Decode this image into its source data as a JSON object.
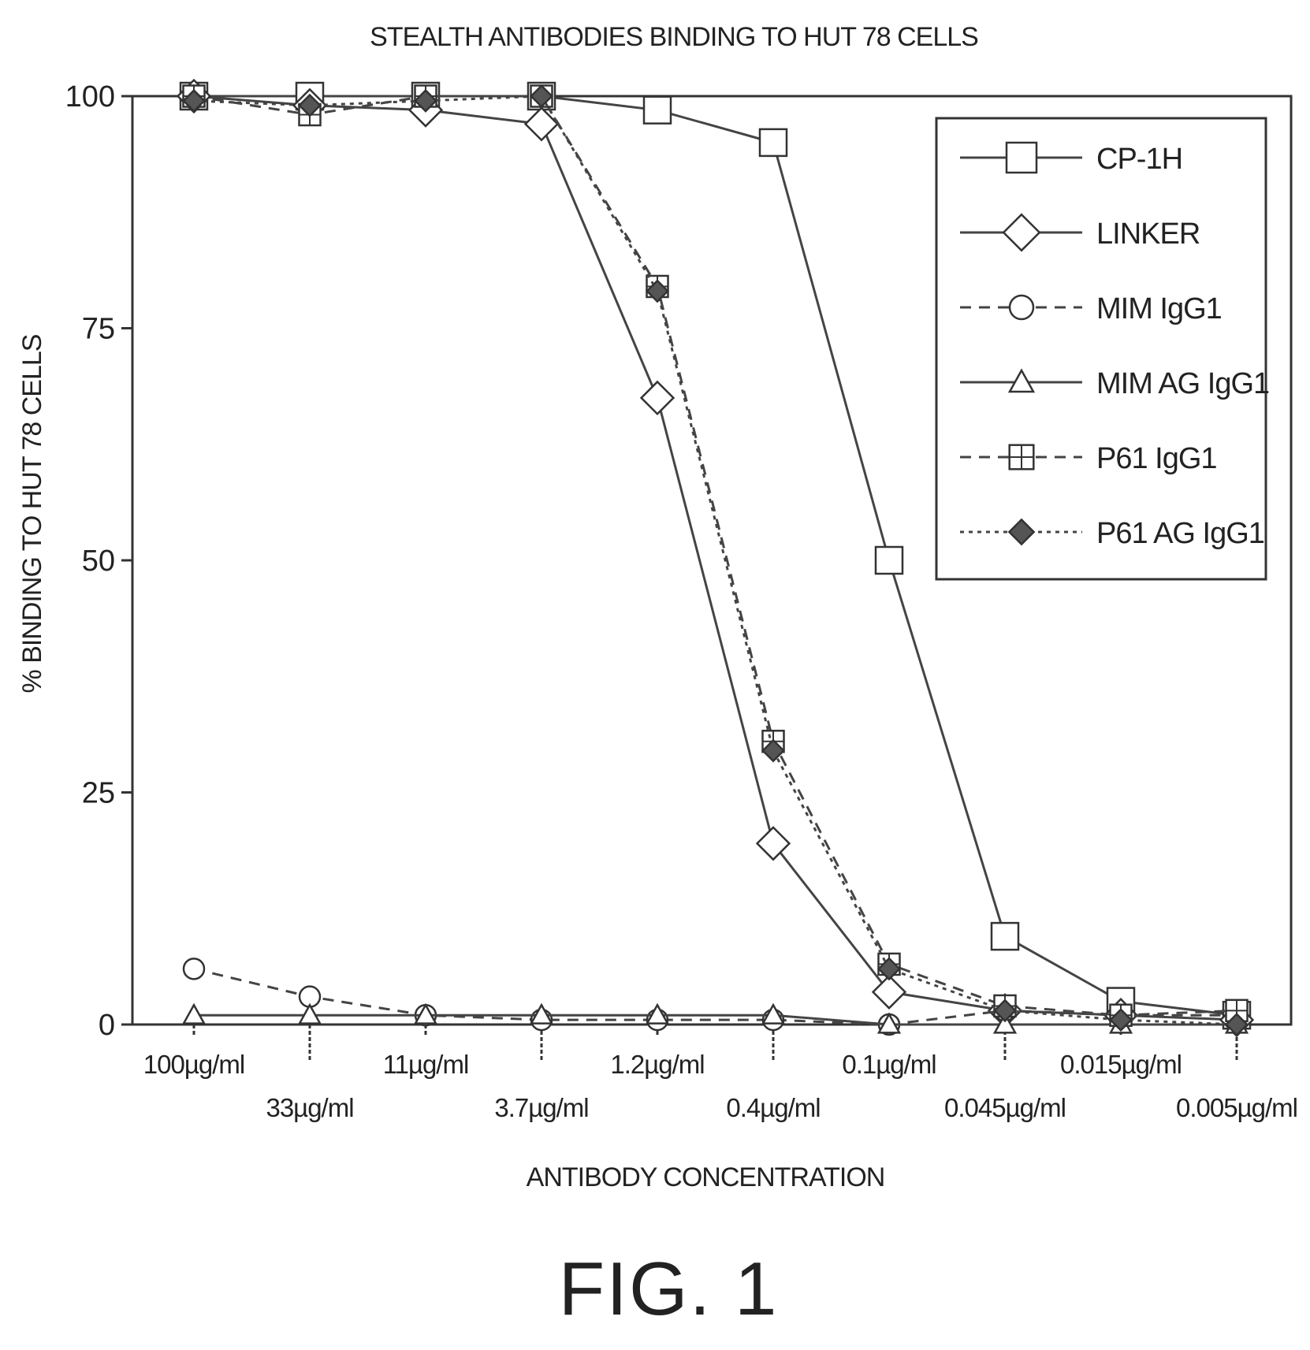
{
  "chart_data": {
    "type": "line",
    "title": "STEALTH ANTIBODIES BINDING TO HUT 78 CELLS",
    "xlabel": "ANTIBODY CONCENTRATION",
    "ylabel": "% BINDING TO HUT 78 CELLS",
    "ylim": [
      0,
      100
    ],
    "yticks": [
      "0",
      "25",
      "50",
      "75",
      "100"
    ],
    "categories": [
      "100µg/ml",
      "33µg/ml",
      "11µg/ml",
      "3.7µg/ml",
      "1.2µg/ml",
      "0.4µg/ml",
      "0.1µg/ml",
      "0.045µg/ml",
      "0.015µg/ml",
      "0.005µg/ml"
    ],
    "legend_position": "top-right",
    "grid": false,
    "series": [
      {
        "name": "CP-1H",
        "marker": "square",
        "dash": "solid",
        "values": [
          100,
          100,
          100,
          100,
          98.5,
          95,
          50,
          9.5,
          2.5,
          1
        ]
      },
      {
        "name": "LINKER",
        "marker": "diamond",
        "dash": "solid",
        "values": [
          100,
          99,
          98.5,
          97,
          67.5,
          19.5,
          3.5,
          1.5,
          1,
          0.5
        ]
      },
      {
        "name": "MIM IgG1",
        "marker": "circle",
        "dash": "dashed",
        "values": [
          6,
          3,
          1,
          0.5,
          0.5,
          0.5,
          0,
          1.5,
          1,
          1
        ]
      },
      {
        "name": "MIM AG IgG1",
        "marker": "triangle",
        "dash": "solid",
        "values": [
          1,
          1,
          1,
          1,
          1,
          1,
          0,
          0,
          0,
          0
        ]
      },
      {
        "name": "P61 IgG1",
        "marker": "square-cross",
        "dash": "dashed",
        "values": [
          100,
          98,
          100,
          100,
          79.5,
          30.5,
          6.5,
          2,
          1,
          1.5
        ]
      },
      {
        "name": "P61 AG IgG1",
        "marker": "filled-diamond",
        "dash": "dotted",
        "values": [
          99.5,
          99,
          99.5,
          100,
          79,
          29.5,
          6,
          1.5,
          0.5,
          0
        ]
      }
    ]
  },
  "figure_label": "FIG. 1"
}
